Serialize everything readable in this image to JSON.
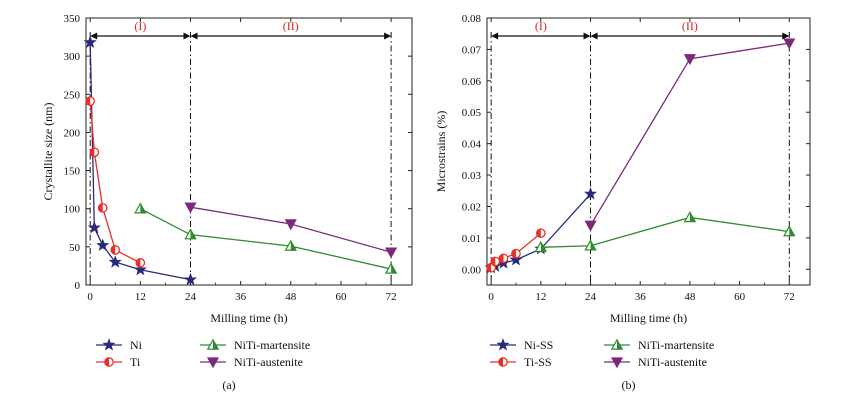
{
  "chart_data": [
    {
      "type": "line",
      "panel_label": "(a)",
      "xlabel": "Milling time (h)",
      "ylabel": "Crystallite size (nm)",
      "xlim": [
        -1,
        77
      ],
      "ylim": [
        0,
        350
      ],
      "xticks": [
        0,
        12,
        24,
        36,
        48,
        60,
        72
      ],
      "yticks": [
        0,
        50,
        100,
        150,
        200,
        250,
        300,
        350
      ],
      "regions": [
        {
          "label": "(I)",
          "from": 0,
          "to": 24
        },
        {
          "label": "(II)",
          "from": 24,
          "to": 72
        }
      ],
      "vlines": [
        0,
        24,
        72
      ],
      "series": [
        {
          "name": "Ni",
          "color": "#2a2a7a",
          "marker": "star",
          "points": [
            [
              0,
              318
            ],
            [
              1,
              75
            ],
            [
              3,
              52
            ],
            [
              6,
              30
            ],
            [
              12,
              20
            ],
            [
              24,
              7
            ]
          ]
        },
        {
          "name": "Ti",
          "color": "#e8302a",
          "marker": "halfcircle",
          "points": [
            [
              0,
              241
            ],
            [
              1,
              174
            ],
            [
              3,
              101
            ],
            [
              6,
              46
            ],
            [
              12,
              29
            ]
          ]
        },
        {
          "name": "NiTi-martensite",
          "color": "#2e8b2e",
          "marker": "triangle-up",
          "points": [
            [
              12,
              100
            ],
            [
              24,
              66
            ],
            [
              48,
              51
            ],
            [
              72,
              21
            ]
          ]
        },
        {
          "name": "NiTi-austenite",
          "color": "#7b2a7b",
          "marker": "triangle-down",
          "points": [
            [
              24,
              102
            ],
            [
              48,
              80
            ],
            [
              72,
              43
            ]
          ]
        }
      ]
    },
    {
      "type": "line",
      "panel_label": "(b)",
      "xlabel": "Milling time (h)",
      "ylabel": "Microstrains (%)",
      "xlim": [
        -1,
        77
      ],
      "ylim": [
        -0.005,
        0.08
      ],
      "xticks": [
        0,
        12,
        24,
        36,
        48,
        60,
        72
      ],
      "yticks": [
        0.0,
        0.01,
        0.02,
        0.03,
        0.04,
        0.05,
        0.06,
        0.07,
        0.08
      ],
      "ytick_labels": [
        "0.00",
        "0.01",
        "0.02",
        "0.03",
        "0.04",
        "0.05",
        "0.06",
        "0.07",
        "0.08"
      ],
      "regions": [
        {
          "label": "(I)",
          "from": 0,
          "to": 24
        },
        {
          "label": "(II)",
          "from": 24,
          "to": 72
        }
      ],
      "vlines": [
        0,
        24,
        72
      ],
      "series": [
        {
          "name": "Ni-SS",
          "color": "#2a2a7a",
          "marker": "star",
          "points": [
            [
              0,
              0.0005
            ],
            [
              1,
              0.001
            ],
            [
              3,
              0.002
            ],
            [
              6,
              0.003
            ],
            [
              12,
              0.0065
            ],
            [
              24,
              0.024
            ]
          ]
        },
        {
          "name": "Ti-SS",
          "color": "#e8302a",
          "marker": "halfcircle",
          "points": [
            [
              0,
              0.0005
            ],
            [
              1,
              0.0025
            ],
            [
              3,
              0.0035
            ],
            [
              6,
              0.005
            ],
            [
              12,
              0.0115
            ]
          ]
        },
        {
          "name": "NiTi-martensite",
          "color": "#2e8b2e",
          "marker": "triangle-up",
          "points": [
            [
              12,
              0.007
            ],
            [
              24,
              0.0075
            ],
            [
              48,
              0.0165
            ],
            [
              72,
              0.012
            ]
          ]
        },
        {
          "name": "NiTi-austenite",
          "color": "#7b2a7b",
          "marker": "triangle-down",
          "points": [
            [
              24,
              0.014
            ],
            [
              48,
              0.067
            ],
            [
              72,
              0.072
            ]
          ]
        }
      ]
    }
  ]
}
